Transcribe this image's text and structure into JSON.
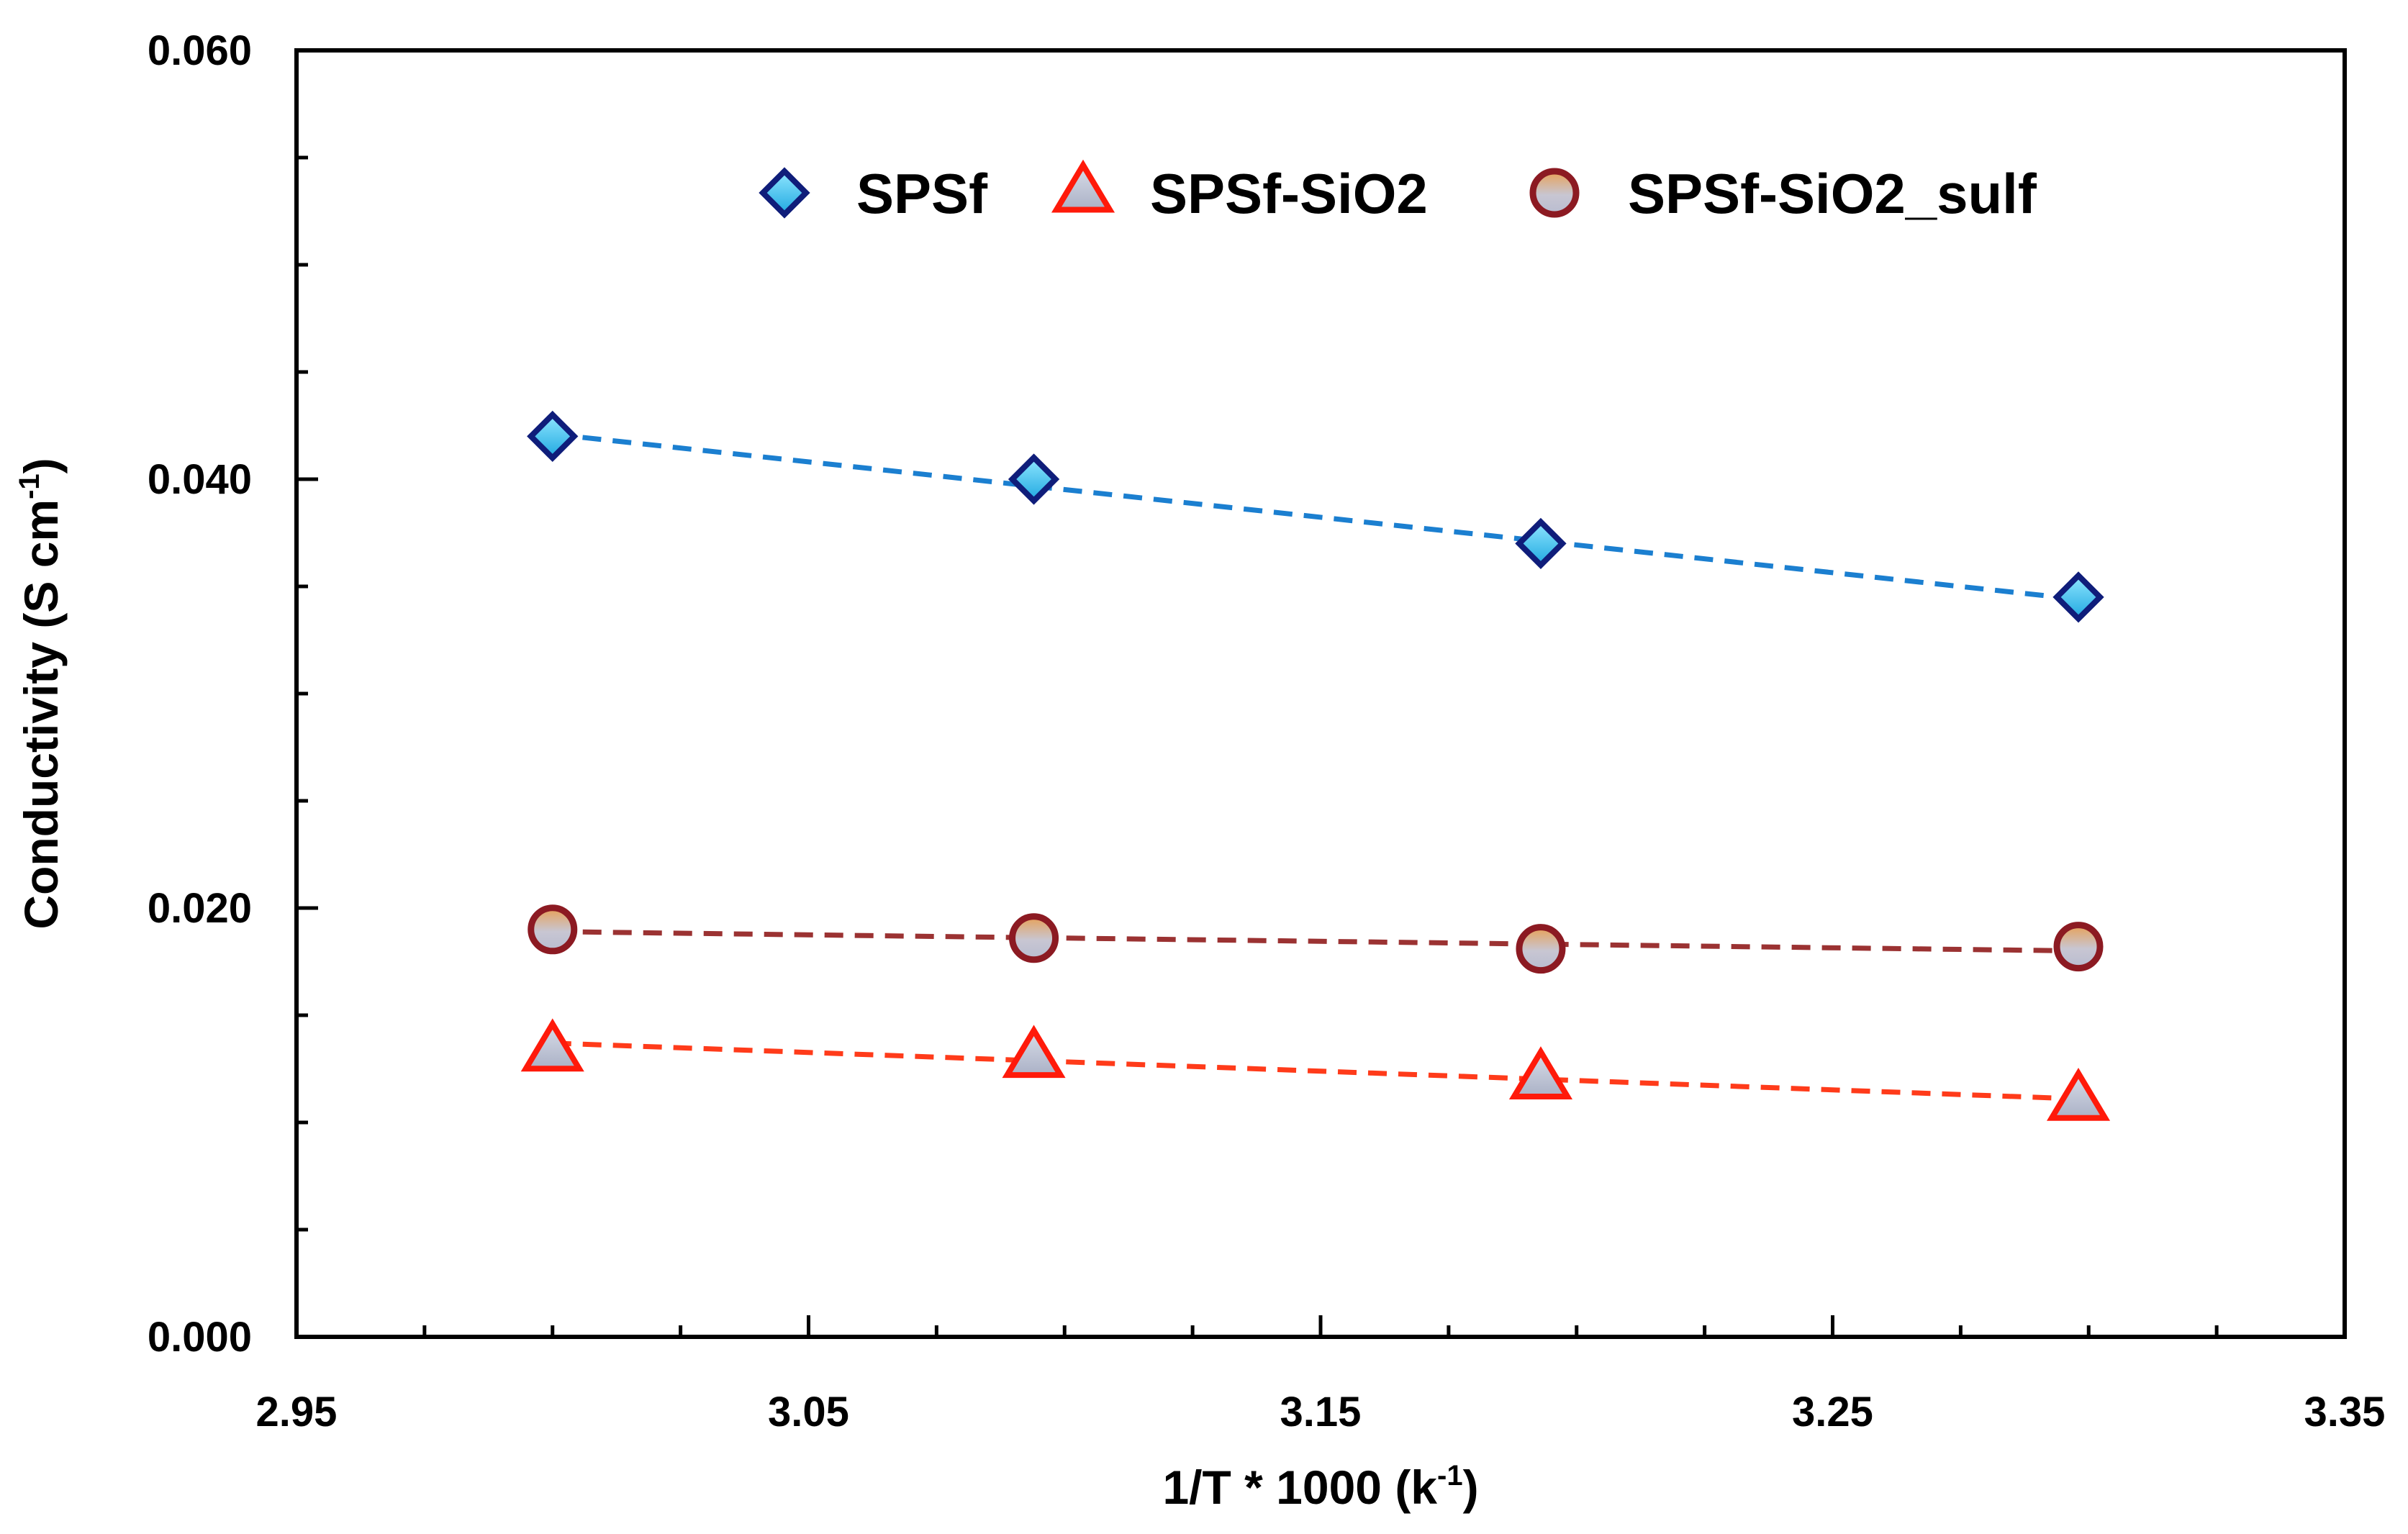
{
  "chart_data": {
    "type": "scatter",
    "xlabel": {
      "main": "1/T * 1000  (k",
      "sup": "-1",
      "end": ")"
    },
    "ylabel": {
      "main": "Conductivity (S cm",
      "sup": "-1",
      "end": ")"
    },
    "xlim": [
      2.95,
      3.35
    ],
    "ylim": [
      0.0,
      0.06
    ],
    "x_ticks": [
      2.95,
      3.05,
      3.15,
      3.25,
      3.35
    ],
    "x_tick_labels": [
      "2.95",
      "3.05",
      "3.15",
      "3.25",
      "3.35"
    ],
    "x_minor_step": 0.025,
    "y_ticks": [
      0.0,
      0.02,
      0.04,
      0.06
    ],
    "y_tick_labels": [
      "0.000",
      "0.020",
      "0.040",
      "0.060"
    ],
    "y_minor_step": 0.005,
    "grid": false,
    "legend_position": "top-right",
    "series": [
      {
        "name": "SPSf",
        "marker": "diamond",
        "x": [
          3.0,
          3.094,
          3.193,
          3.298
        ],
        "y": [
          0.042,
          0.04,
          0.037,
          0.0345
        ],
        "trendline": {
          "x0": 3.0,
          "y0": 0.0421,
          "x1": 3.298,
          "y1": 0.0344
        },
        "marker_fill": "#3ec6ef",
        "marker_stroke": "#0f1d7a",
        "line_color": "#1b7fd0"
      },
      {
        "name": "SPSf-SiO2",
        "marker": "triangle",
        "x": [
          3.0,
          3.094,
          3.193,
          3.298
        ],
        "y": [
          0.0133,
          0.013,
          0.012,
          0.011
        ],
        "trendline": {
          "x0": 3.0,
          "y0": 0.0137,
          "x1": 3.298,
          "y1": 0.0111
        },
        "marker_fill": "#c4c9d9",
        "marker_stroke": "#ff1a0a",
        "line_color": "#ff3b1a"
      },
      {
        "name": "SPSf-SiO2_sulf",
        "marker": "circle",
        "x": [
          3.0,
          3.094,
          3.193,
          3.298
        ],
        "y": [
          0.019,
          0.0186,
          0.0181,
          0.0182
        ],
        "trendline": {
          "x0": 3.0,
          "y0": 0.0189,
          "x1": 3.298,
          "y1": 0.018
        },
        "marker_fill": "#c9b0a8",
        "marker_stroke": "#8c1a22",
        "line_color": "#9b3232"
      }
    ]
  }
}
